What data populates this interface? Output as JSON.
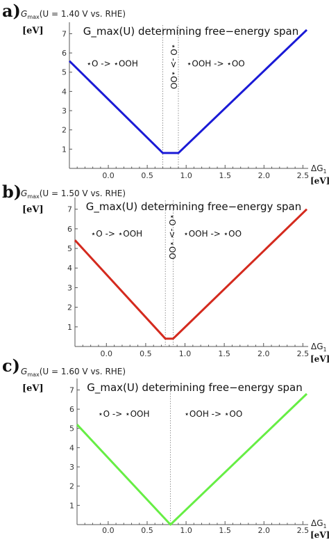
{
  "chart_data": [
    {
      "panel_label": "a)",
      "type": "line",
      "y_title_main": "G",
      "y_title_sub": "max",
      "y_title_rest": "(U = 1.40  V vs. RHE)",
      "y_unit": "[eV]",
      "x_title_main": "ΔG",
      "x_title_sub": "1",
      "x_unit": "[eV]",
      "inner_title": "G_max(U) determining free−energy span",
      "xlim": [
        -0.5,
        2.55
      ],
      "ylim": [
        0.0,
        7.45
      ],
      "x_ticks": [
        0.0,
        0.5,
        1.0,
        1.5,
        2.0,
        2.5
      ],
      "x_tick_labels": [
        "0.0",
        "0.5",
        "1.0",
        "1.5",
        "2.0",
        "2.5"
      ],
      "y_ticks": [
        1,
        2,
        3,
        4,
        5,
        6,
        7
      ],
      "y_tick_labels": [
        "1",
        "2",
        "3",
        "4",
        "5",
        "6",
        "7"
      ],
      "series": [
        {
          "color": "#1a1ad6",
          "points": [
            [
              -0.5,
              5.58
            ],
            [
              0.7,
              0.8
            ],
            [
              0.9,
              0.8
            ],
            [
              2.55,
              7.2
            ]
          ]
        }
      ],
      "dividers": [
        0.7,
        0.9
      ],
      "region_labels": [
        {
          "text": "⋆O -> ⋆OOH",
          "x": 0.05,
          "y": 5.3,
          "vertical": false
        },
        {
          "text": "⋆O -> ⋆OO",
          "x": 0.8,
          "y": 5.3,
          "vertical": true
        },
        {
          "text": "⋆OOH -> ⋆OO",
          "x": 1.38,
          "y": 5.3,
          "vertical": false
        }
      ]
    },
    {
      "panel_label": "b)",
      "type": "line",
      "y_title_main": "G",
      "y_title_sub": "max",
      "y_title_rest": "(U = 1.50  V vs. RHE)",
      "y_unit": "[eV]",
      "x_title_main": "ΔG",
      "x_title_sub": "1",
      "x_unit": "[eV]",
      "inner_title": "G_max(U) determining free−energy span",
      "xlim": [
        -0.4,
        2.55
      ],
      "ylim": [
        0.0,
        7.45
      ],
      "x_ticks": [
        0.0,
        0.5,
        1.0,
        1.5,
        2.0,
        2.5
      ],
      "x_tick_labels": [
        "0.0",
        "0.5",
        "1.0",
        "1.5",
        "2.0",
        "2.5"
      ],
      "y_ticks": [
        1,
        2,
        3,
        4,
        5,
        6,
        7
      ],
      "y_tick_labels": [
        "1",
        "2",
        "3",
        "4",
        "5",
        "6",
        "7"
      ],
      "series": [
        {
          "color": "#d42a1e",
          "points": [
            [
              -0.4,
              5.42
            ],
            [
              0.75,
              0.4
            ],
            [
              0.85,
              0.4
            ],
            [
              2.55,
              7.0
            ]
          ]
        }
      ],
      "dividers": [
        0.75,
        0.85
      ],
      "region_labels": [
        {
          "text": "⋆O -> ⋆OOH",
          "x": 0.13,
          "y": 5.6,
          "vertical": false
        },
        {
          "text": "⋆O -> ⋆OO",
          "x": 0.8,
          "y": 5.6,
          "vertical": true
        },
        {
          "text": "⋆OOH -> ⋆OO",
          "x": 1.35,
          "y": 5.6,
          "vertical": false
        }
      ]
    },
    {
      "panel_label": "c)",
      "type": "line",
      "y_title_main": "G",
      "y_title_sub": "max",
      "y_title_rest": "(U = 1.60  V vs. RHE)",
      "y_unit": "[eV]",
      "x_title_main": "ΔG",
      "x_title_sub": "1",
      "x_unit": "[eV]",
      "inner_title": "G_max(U) determining free−energy span",
      "xlim": [
        -0.4,
        2.55
      ],
      "ylim": [
        0.0,
        7.45
      ],
      "x_ticks": [
        0.0,
        0.5,
        1.0,
        1.5,
        2.0,
        2.5
      ],
      "x_tick_labels": [
        "0.0",
        "0.5",
        "1.0",
        "1.5",
        "2.0",
        "2.5"
      ],
      "y_ticks": [
        1,
        2,
        3,
        4,
        5,
        6,
        7
      ],
      "y_tick_labels": [
        "1",
        "2",
        "3",
        "4",
        "5",
        "6",
        "7"
      ],
      "series": [
        {
          "color": "#66ee44",
          "points": [
            [
              -0.4,
              5.2
            ],
            [
              0.8,
              0.0
            ],
            [
              2.55,
              6.8
            ]
          ]
        }
      ],
      "dividers": [
        0.8
      ],
      "region_labels": [
        {
          "text": "⋆O -> ⋆OOH",
          "x": 0.2,
          "y": 5.6,
          "vertical": false
        },
        {
          "text": "⋆OOH -> ⋆OO",
          "x": 1.35,
          "y": 5.6,
          "vertical": false
        }
      ]
    }
  ]
}
